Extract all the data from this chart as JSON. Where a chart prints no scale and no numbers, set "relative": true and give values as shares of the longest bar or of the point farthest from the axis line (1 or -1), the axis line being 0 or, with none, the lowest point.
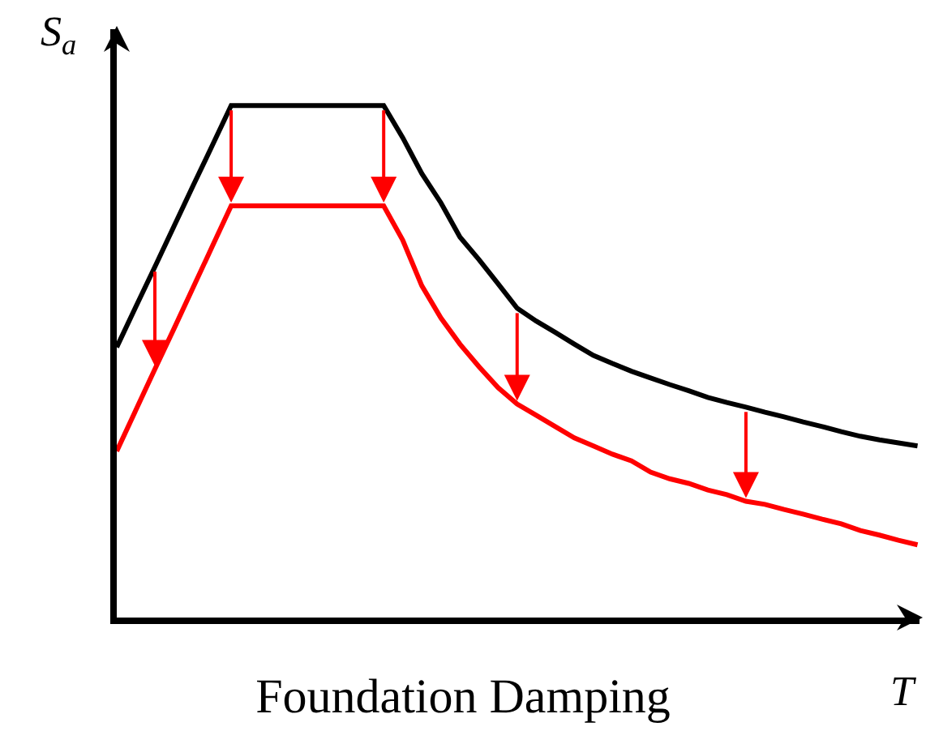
{
  "chart_data": {
    "type": "line",
    "title": "Foundation Damping",
    "xlabel": "T",
    "ylabel": "S$_{a}$",
    "relative": true,
    "categories": [
      null,
      null,
      null,
      null,
      null,
      null,
      null,
      null,
      null,
      null,
      null,
      null,
      null,
      null,
      null,
      null,
      null,
      null,
      null,
      null,
      null,
      null,
      null,
      null,
      null,
      null,
      null,
      null,
      null,
      null,
      null,
      null,
      null,
      null,
      null,
      null,
      null,
      null,
      null,
      null,
      null,
      null,
      null
    ],
    "series": [
      {
        "color": "#000000",
        "values": [
          0.528,
          0.607,
          0.685,
          0.764,
          0.843,
          0.921,
          1,
          1,
          1,
          1,
          1,
          1,
          1,
          1,
          1,
          0.937,
          0.867,
          0.81,
          0.743,
          0.699,
          0.652,
          0.604,
          0.579,
          0.557,
          0.534,
          0.512,
          0.496,
          0.481,
          0.468,
          0.455,
          0.443,
          0.43,
          0.42,
          0.411,
          0.401,
          0.392,
          0.382,
          0.373,
          0.363,
          0.354,
          0.347,
          0.341,
          0.335
        ]
      },
      {
        "color": "#ff0000",
        "values": [
          0.325,
          0.405,
          0.485,
          0.564,
          0.644,
          0.724,
          0.804,
          0.804,
          0.804,
          0.804,
          0.804,
          0.804,
          0.804,
          0.804,
          0.804,
          0.737,
          0.648,
          0.585,
          0.534,
          0.49,
          0.449,
          0.417,
          0.395,
          0.373,
          0.351,
          0.335,
          0.319,
          0.306,
          0.284,
          0.271,
          0.262,
          0.249,
          0.24,
          0.227,
          0.221,
          0.211,
          0.202,
          0.192,
          0.183,
          0.17,
          0.161,
          0.151,
          0.142
        ]
      }
    ]
  }
}
